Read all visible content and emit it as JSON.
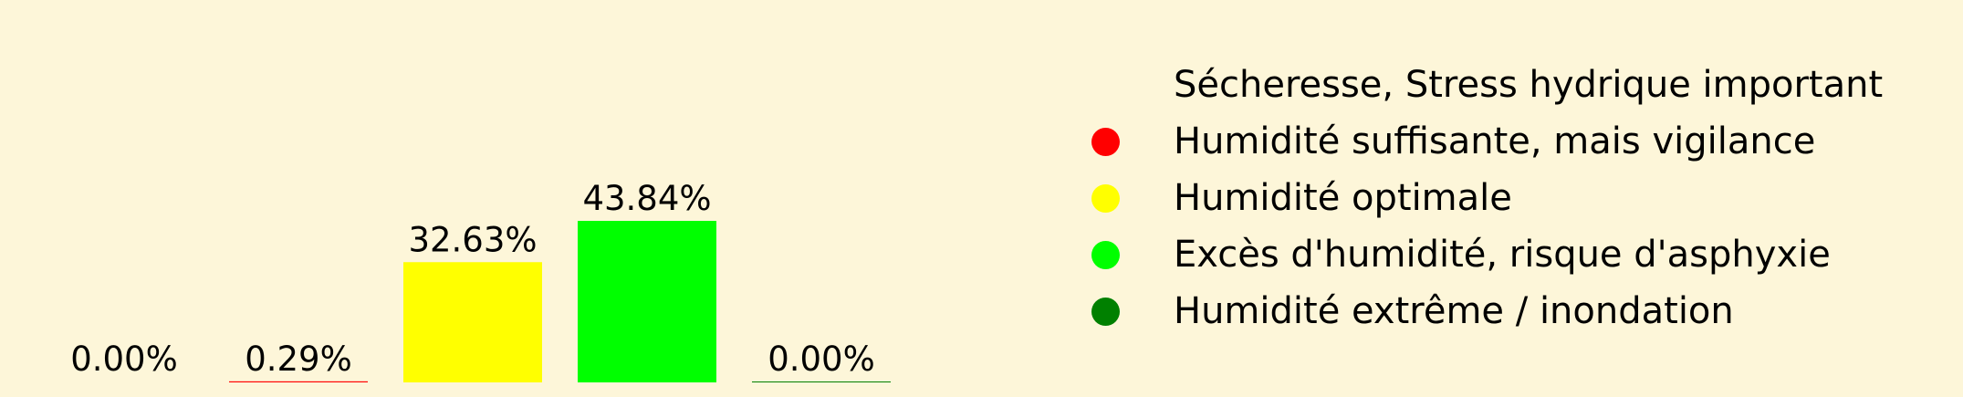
{
  "chart_data": {
    "type": "bar",
    "title": "",
    "xlabel": "",
    "ylabel": "",
    "ylim": [
      0,
      43.84
    ],
    "categories": [
      "Sécheresse, Stress hydrique important",
      "Humidité suffisante, mais vigilance",
      "Humidité optimale",
      "Excès d'humidité, risque d'asphyxie",
      "Humidité extrême / inondation"
    ],
    "values": [
      0.0,
      0.29,
      32.63,
      43.84,
      0.0
    ],
    "value_labels": [
      "0.00%",
      "0.29%",
      "32.63%",
      "43.84%",
      "0.00%"
    ],
    "colors": [
      "#fdf6d9",
      "#ff0000",
      "#ffff00",
      "#00ff00",
      "#008000"
    ]
  },
  "legend": {
    "items": [
      {
        "label": "Sécheresse, Stress hydrique important",
        "color": ""
      },
      {
        "label": "Humidité suffisante, mais vigilance",
        "color": "#ff0000"
      },
      {
        "label": "Humidité optimale",
        "color": "#ffff00"
      },
      {
        "label": "Excès d'humidité, risque d'asphyxie",
        "color": "#00ff00"
      },
      {
        "label": "Humidité extrême / inondation",
        "color": "#008000"
      }
    ]
  }
}
